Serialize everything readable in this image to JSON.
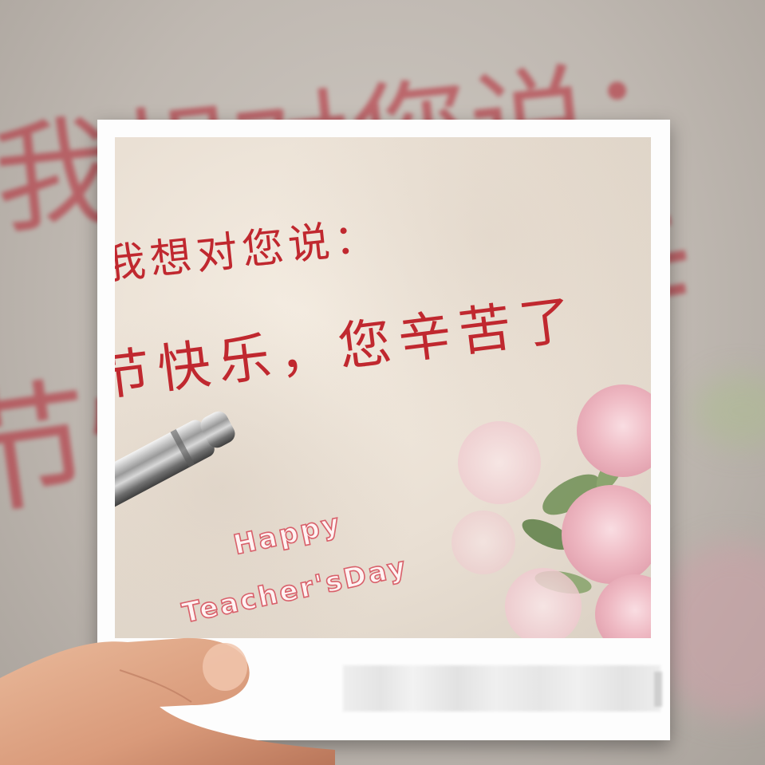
{
  "greeting": {
    "line1": "我想对您说：",
    "line2": "节快乐，您辛苦了",
    "english_line1": "Happy",
    "english_line2": "Teacher'sDay"
  },
  "background_text": {
    "line1": "我想对您说：",
    "line2": "节快乐，",
    "line3": "辛"
  },
  "colors": {
    "handwriting": "#c0282f",
    "frame": "#fdfdfd",
    "accent_pink": "#d8606a"
  }
}
